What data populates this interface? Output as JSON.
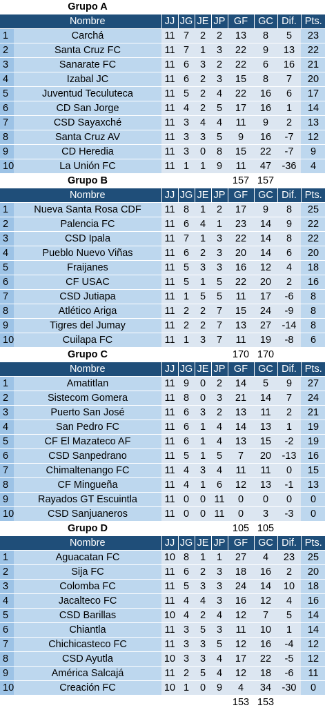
{
  "headers": [
    "",
    "Nombre",
    "JJ",
    "JG",
    "JE",
    "JP",
    "GF",
    "GC",
    "Dif.",
    "Pts."
  ],
  "groups": [
    {
      "title": "Grupo A",
      "rows": [
        [
          "1",
          "Carchá",
          "11",
          "7",
          "2",
          "2",
          "13",
          "8",
          "5",
          "23"
        ],
        [
          "2",
          "Santa Cruz FC",
          "11",
          "7",
          "1",
          "3",
          "22",
          "9",
          "13",
          "22"
        ],
        [
          "3",
          "Sanarate FC",
          "11",
          "6",
          "3",
          "2",
          "22",
          "6",
          "16",
          "21"
        ],
        [
          "4",
          "Izabal JC",
          "11",
          "6",
          "2",
          "3",
          "15",
          "8",
          "7",
          "20"
        ],
        [
          "5",
          "Juventud Teculuteca",
          "11",
          "5",
          "2",
          "4",
          "22",
          "16",
          "6",
          "17"
        ],
        [
          "6",
          "CD San Jorge",
          "11",
          "4",
          "2",
          "5",
          "17",
          "16",
          "1",
          "14"
        ],
        [
          "7",
          "CSD Sayaxché",
          "11",
          "3",
          "4",
          "4",
          "11",
          "9",
          "2",
          "13"
        ],
        [
          "8",
          "Santa Cruz AV",
          "11",
          "3",
          "3",
          "5",
          "9",
          "16",
          "-7",
          "12"
        ],
        [
          "9",
          "CD Heredia",
          "11",
          "3",
          "0",
          "8",
          "15",
          "22",
          "-7",
          "9"
        ],
        [
          "10",
          "La Unión FC",
          "11",
          "1",
          "1",
          "9",
          "11",
          "47",
          "-36",
          "4"
        ]
      ],
      "totals": {
        "gf": "157",
        "gc": "157"
      }
    },
    {
      "title": "Grupo B",
      "rows": [
        [
          "1",
          "Nueva Santa Rosa CDF",
          "11",
          "8",
          "1",
          "2",
          "17",
          "9",
          "8",
          "25"
        ],
        [
          "2",
          "Palencia FC",
          "11",
          "6",
          "4",
          "1",
          "23",
          "14",
          "9",
          "22"
        ],
        [
          "3",
          "CSD Ipala",
          "11",
          "7",
          "1",
          "3",
          "22",
          "14",
          "8",
          "22"
        ],
        [
          "4",
          "Pueblo Nuevo Viñas",
          "11",
          "6",
          "2",
          "3",
          "20",
          "14",
          "6",
          "20"
        ],
        [
          "5",
          "Fraijanes",
          "11",
          "5",
          "3",
          "3",
          "16",
          "12",
          "4",
          "18"
        ],
        [
          "6",
          "CF USAC",
          "11",
          "5",
          "1",
          "5",
          "22",
          "20",
          "2",
          "16"
        ],
        [
          "7",
          "CSD Jutiapa",
          "11",
          "1",
          "5",
          "5",
          "11",
          "17",
          "-6",
          "8"
        ],
        [
          "8",
          "Atlético Ariga",
          "11",
          "2",
          "2",
          "7",
          "15",
          "24",
          "-9",
          "8"
        ],
        [
          "9",
          "Tigres del Jumay",
          "11",
          "2",
          "2",
          "7",
          "13",
          "27",
          "-14",
          "8"
        ],
        [
          "10",
          "Cuilapa FC",
          "11",
          "1",
          "3",
          "7",
          "11",
          "19",
          "-8",
          "6"
        ]
      ],
      "totals": {
        "gf": "170",
        "gc": "170"
      }
    },
    {
      "title": "Grupo C",
      "rows": [
        [
          "1",
          "Amatitlan",
          "11",
          "9",
          "0",
          "2",
          "14",
          "5",
          "9",
          "27"
        ],
        [
          "2",
          "Sistecom Gomera",
          "11",
          "8",
          "0",
          "3",
          "21",
          "14",
          "7",
          "24"
        ],
        [
          "3",
          "Puerto San José",
          "11",
          "6",
          "3",
          "2",
          "13",
          "11",
          "2",
          "21"
        ],
        [
          "4",
          "San Pedro FC",
          "11",
          "6",
          "1",
          "4",
          "14",
          "13",
          "1",
          "19"
        ],
        [
          "5",
          "CF El Mazateco AF",
          "11",
          "6",
          "1",
          "4",
          "13",
          "15",
          "-2",
          "19"
        ],
        [
          "6",
          "CSD Sanpedrano",
          "11",
          "5",
          "1",
          "5",
          "7",
          "20",
          "-13",
          "16"
        ],
        [
          "7",
          "Chimaltenango FC",
          "11",
          "4",
          "3",
          "4",
          "11",
          "11",
          "0",
          "15"
        ],
        [
          "8",
          "CF Mingueña",
          "11",
          "4",
          "1",
          "6",
          "12",
          "13",
          "-1",
          "13"
        ],
        [
          "9",
          "Rayados GT Escuintla",
          "11",
          "0",
          "0",
          "11",
          "0",
          "0",
          "0",
          "0"
        ],
        [
          "10",
          "CSD Sanjuaneros",
          "11",
          "0",
          "0",
          "11",
          "0",
          "3",
          "-3",
          "0"
        ]
      ],
      "totals": {
        "gf": "105",
        "gc": "105"
      }
    },
    {
      "title": "Grupo D",
      "rows": [
        [
          "1",
          "Aguacatan FC",
          "10",
          "8",
          "1",
          "1",
          "27",
          "4",
          "23",
          "25"
        ],
        [
          "2",
          "Sija FC",
          "11",
          "6",
          "2",
          "3",
          "18",
          "16",
          "2",
          "20"
        ],
        [
          "3",
          "Colomba FC",
          "11",
          "5",
          "3",
          "3",
          "24",
          "14",
          "10",
          "18"
        ],
        [
          "4",
          "Jacalteco FC",
          "11",
          "4",
          "4",
          "3",
          "16",
          "12",
          "4",
          "16"
        ],
        [
          "5",
          "CSD Barillas",
          "10",
          "4",
          "2",
          "4",
          "12",
          "7",
          "5",
          "14"
        ],
        [
          "6",
          "Chiantla",
          "11",
          "3",
          "5",
          "3",
          "11",
          "10",
          "1",
          "14"
        ],
        [
          "7",
          "Chichicasteco FC",
          "11",
          "3",
          "3",
          "5",
          "12",
          "16",
          "-4",
          "12"
        ],
        [
          "8",
          "CSD Ayutla",
          "10",
          "3",
          "3",
          "4",
          "17",
          "22",
          "-5",
          "12"
        ],
        [
          "9",
          "América Salcajá",
          "11",
          "2",
          "5",
          "4",
          "12",
          "18",
          "-6",
          "11"
        ],
        [
          "10",
          "Creación FC",
          "10",
          "1",
          "0",
          "9",
          "4",
          "34",
          "-30",
          "0"
        ]
      ],
      "totals": {
        "gf": "153",
        "gc": "153"
      }
    }
  ],
  "colors": {
    "header_bg": "#1f4e79",
    "position_bg": "#9dc3e6",
    "team_bg": "#bdd7ee",
    "stats_bg": "#dce6f1"
  }
}
